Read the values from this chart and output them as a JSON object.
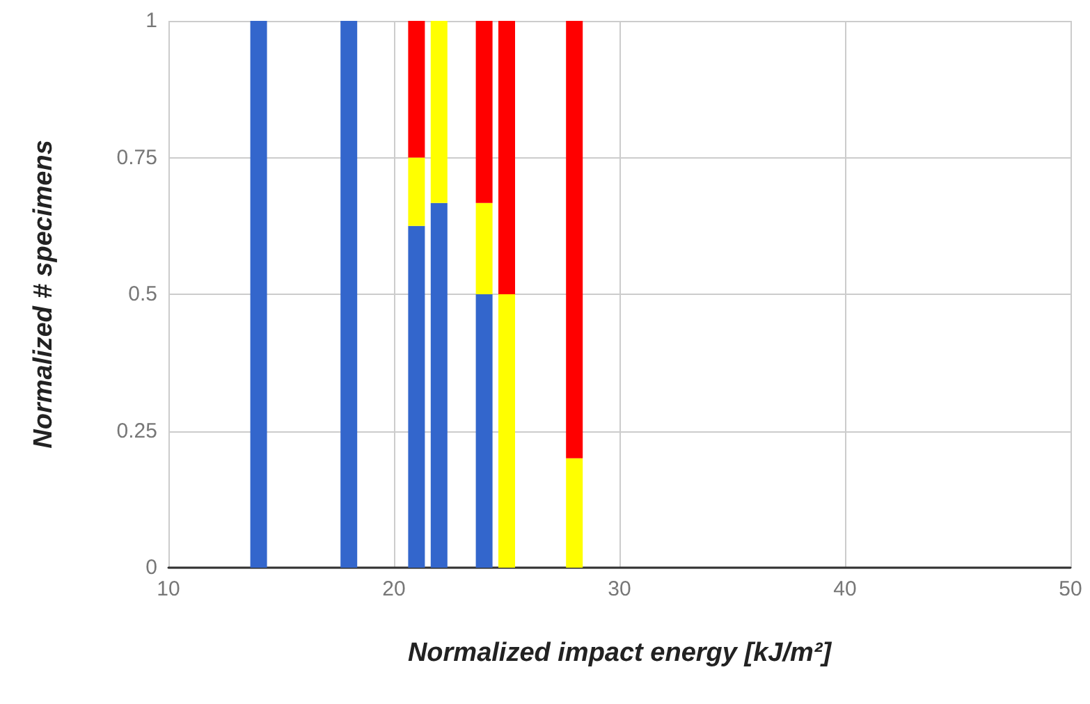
{
  "chart_data": {
    "type": "bar",
    "xlabel": "Normalized impact energy [kJ/m²]",
    "ylabel": "Normalized # specimens",
    "x": [
      14,
      18,
      21,
      22,
      24,
      25,
      28
    ],
    "stacked": true,
    "series": [
      {
        "color": "#3366cc",
        "values": [
          1,
          1,
          0.625,
          0.667,
          0.5,
          0,
          0
        ]
      },
      {
        "color": "#ffff00",
        "values": [
          0,
          0,
          0.125,
          0.333,
          0.167,
          0.5,
          0.2
        ]
      },
      {
        "color": "#ff0000",
        "values": [
          0,
          0,
          0.25,
          0,
          0.333,
          0.5,
          0.8
        ]
      }
    ],
    "xlim": [
      10,
      50
    ],
    "xticks": [
      10,
      20,
      30,
      40,
      50
    ],
    "ylim": [
      0,
      1
    ],
    "yticks": [
      0,
      0.25,
      0.5,
      0.75,
      1
    ],
    "grid": true
  }
}
